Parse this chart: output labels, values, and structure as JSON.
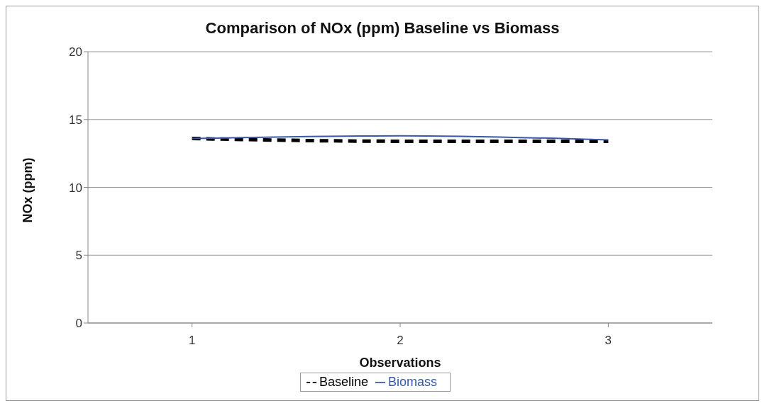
{
  "chart_data": {
    "type": "line",
    "title": "Comparison of NOx (ppm) Baseline vs Biomass",
    "xlabel": "Observations",
    "ylabel": "NOx (ppm)",
    "categories": [
      "1",
      "2",
      "3"
    ],
    "series": [
      {
        "name": "Baseline",
        "color": "#000000",
        "line_style": "dashed",
        "values": [
          13.6,
          13.4,
          13.4
        ]
      },
      {
        "name": "Biomass",
        "color": "#3a58a8",
        "line_style": "solid",
        "values": [
          13.6,
          13.8,
          13.5
        ]
      }
    ],
    "ylim": [
      0,
      20
    ],
    "yticks": [
      0,
      5,
      10,
      15,
      20
    ],
    "grid": "y",
    "legend": "bottom",
    "marker": "none"
  }
}
